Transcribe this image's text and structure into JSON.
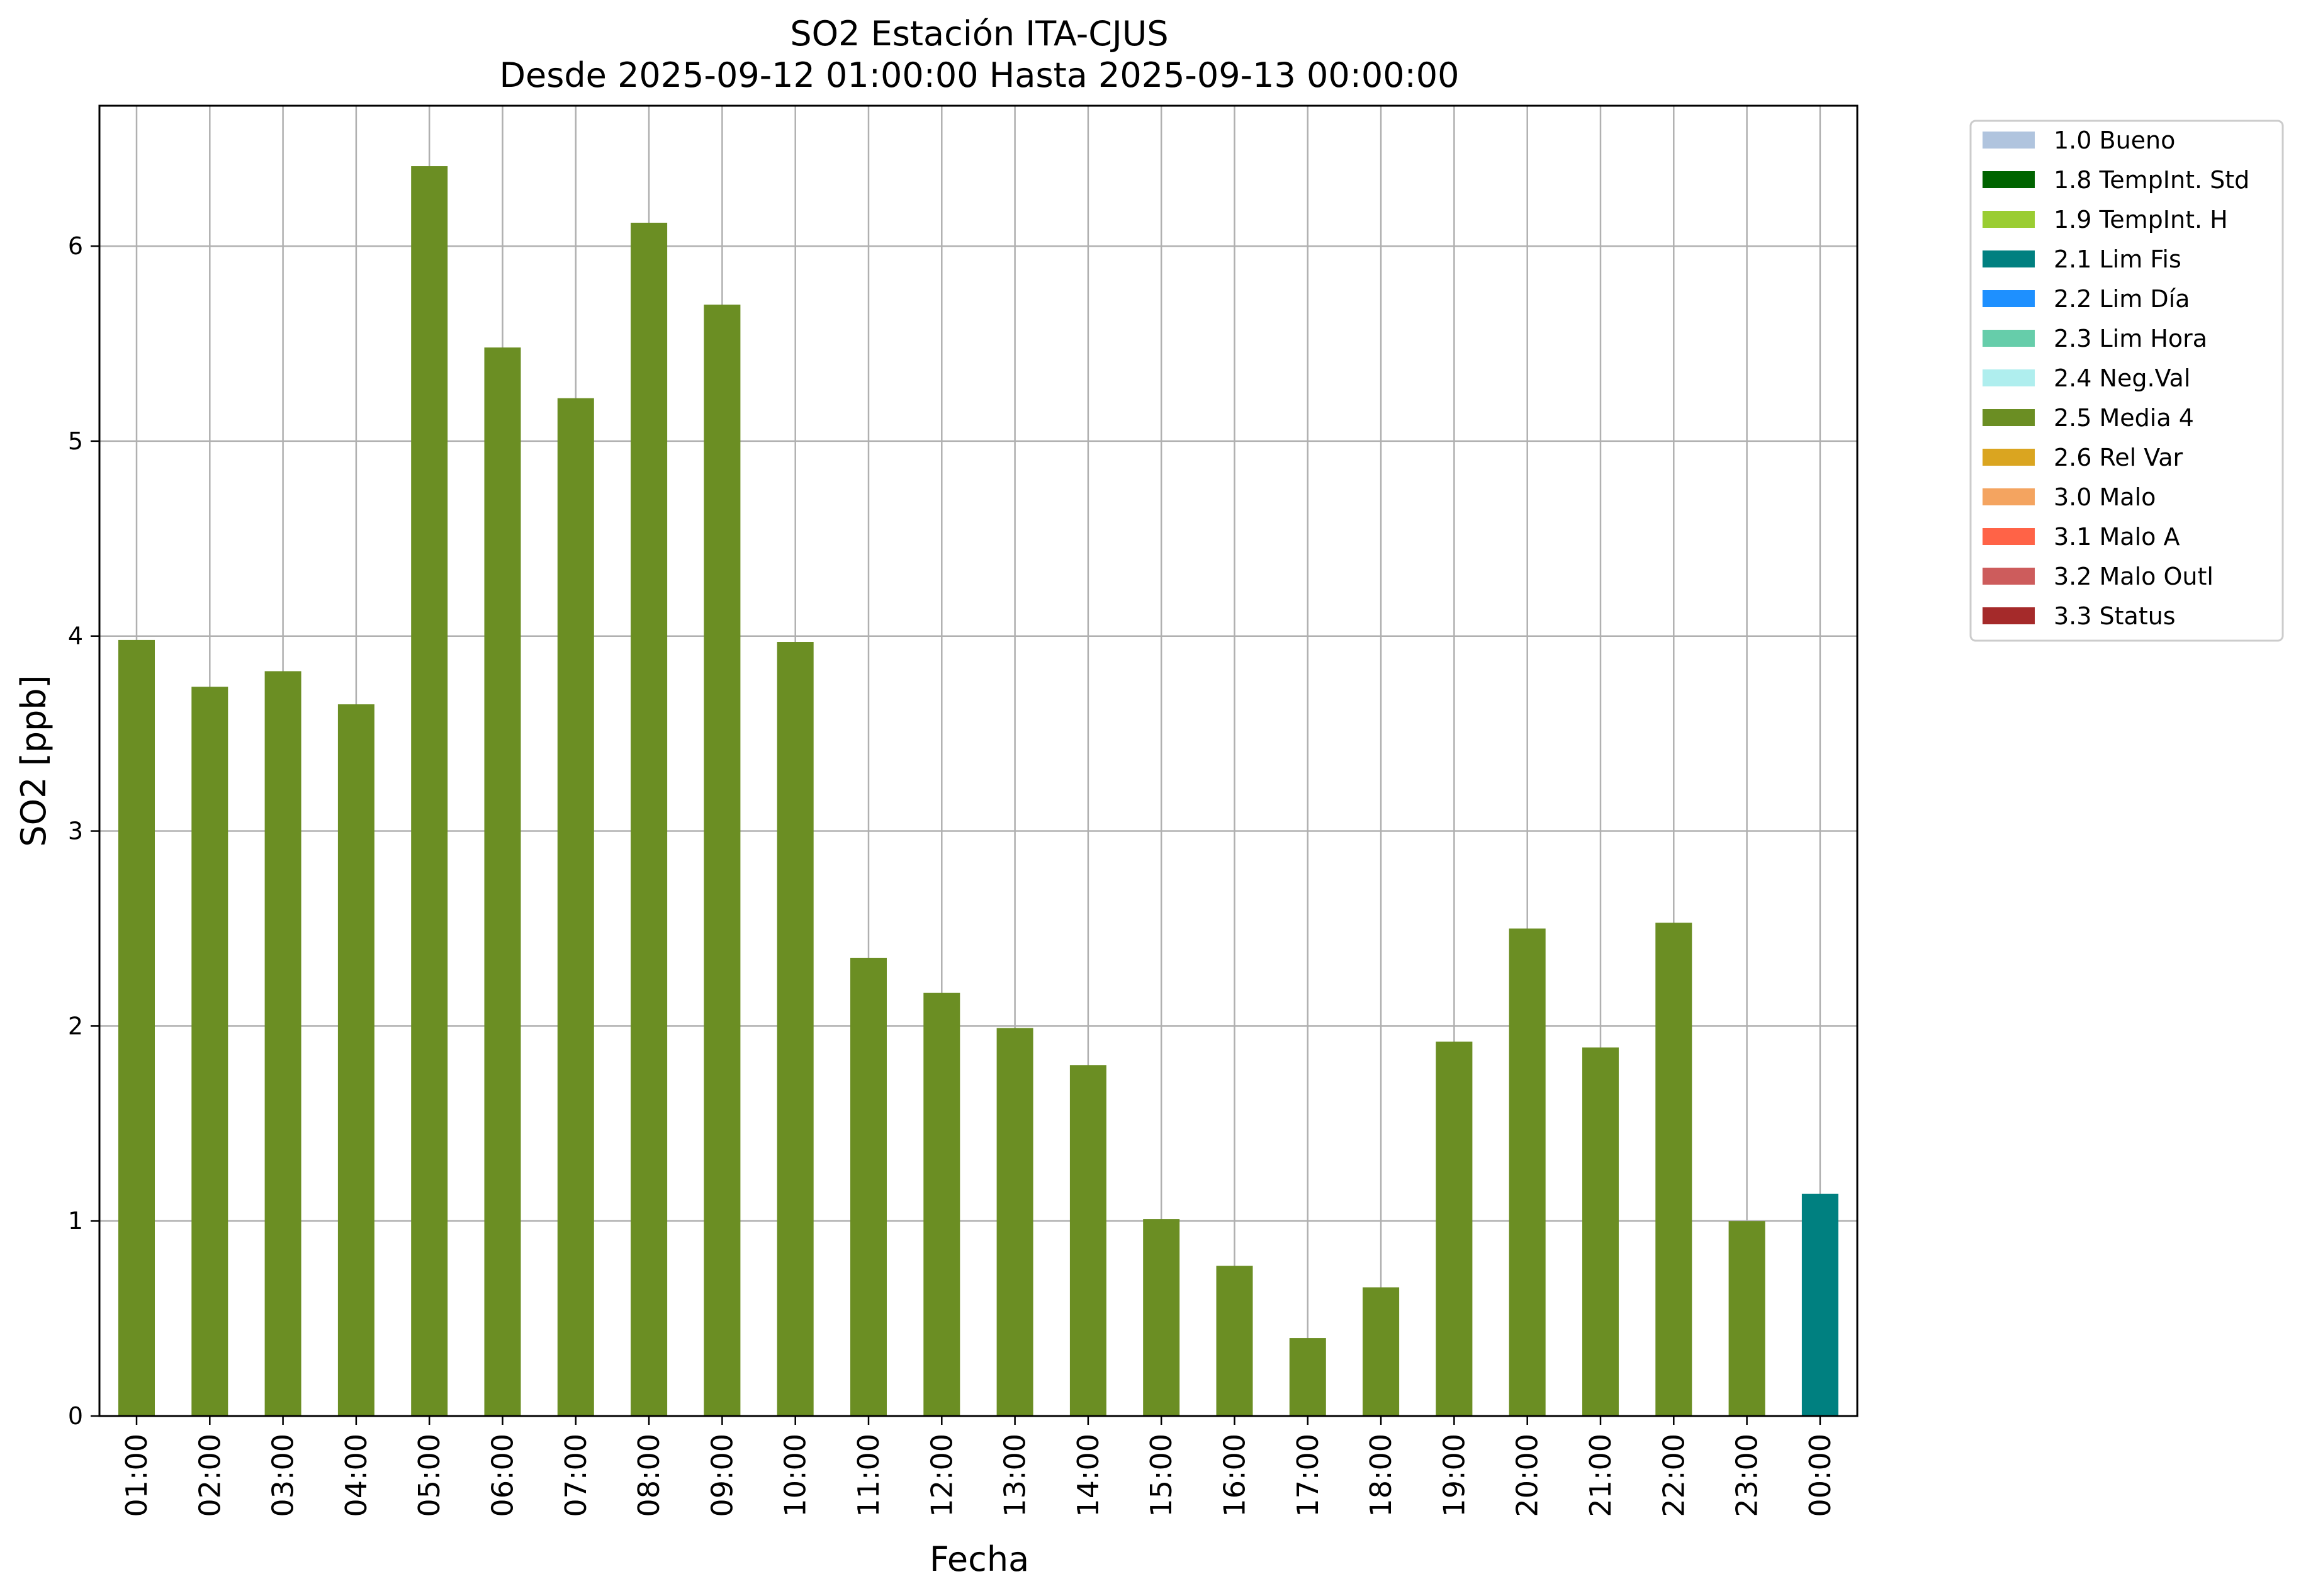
{
  "chart_data": {
    "type": "bar",
    "title": "SO2 Estación ITA-CJUS",
    "subtitle": "Desde 2025-09-12 01:00:00 Hasta 2025-09-13 00:00:00",
    "xlabel": "Fecha",
    "ylabel": "SO2 [ppb]",
    "ylim": [
      0,
      6.72
    ],
    "yticks": [
      "0",
      "1",
      "2",
      "3",
      "4",
      "5",
      "6"
    ],
    "grid": true,
    "legend_position": "outside-top-right",
    "categories": [
      "01:00",
      "02:00",
      "03:00",
      "04:00",
      "05:00",
      "06:00",
      "07:00",
      "08:00",
      "09:00",
      "10:00",
      "11:00",
      "12:00",
      "13:00",
      "14:00",
      "15:00",
      "16:00",
      "17:00",
      "18:00",
      "19:00",
      "20:00",
      "21:00",
      "22:00",
      "23:00",
      "00:00"
    ],
    "values": [
      3.98,
      3.74,
      3.82,
      3.65,
      6.41,
      5.48,
      5.22,
      6.12,
      5.7,
      3.97,
      2.35,
      2.17,
      1.99,
      1.8,
      1.01,
      0.77,
      0.4,
      0.66,
      1.92,
      2.5,
      1.89,
      2.53,
      1.0,
      1.14
    ],
    "flags": [
      "2.5 Media 4",
      "2.5 Media 4",
      "2.5 Media 4",
      "2.5 Media 4",
      "2.5 Media 4",
      "2.5 Media 4",
      "2.5 Media 4",
      "2.5 Media 4",
      "2.5 Media 4",
      "2.5 Media 4",
      "2.5 Media 4",
      "2.5 Media 4",
      "2.5 Media 4",
      "2.5 Media 4",
      "2.5 Media 4",
      "2.5 Media 4",
      "2.5 Media 4",
      "2.5 Media 4",
      "2.5 Media 4",
      "2.5 Media 4",
      "2.5 Media 4",
      "2.5 Media 4",
      "2.5 Media 4",
      "2.1 Lim Fis"
    ],
    "legend": [
      {
        "label": "1.0 Bueno",
        "color": "#b0c4de"
      },
      {
        "label": "1.8 TempInt. Std",
        "color": "#006400"
      },
      {
        "label": "1.9 TempInt. H",
        "color": "#9acd32"
      },
      {
        "label": "2.1 Lim Fis",
        "color": "#008080"
      },
      {
        "label": "2.2 Lim Día",
        "color": "#1e90ff"
      },
      {
        "label": "2.3 Lim Hora",
        "color": "#66cdaa"
      },
      {
        "label": "2.4 Neg.Val",
        "color": "#afeeee"
      },
      {
        "label": "2.5 Media 4",
        "color": "#6b8e23"
      },
      {
        "label": "2.6 Rel Var",
        "color": "#daa520"
      },
      {
        "label": "3.0 Malo",
        "color": "#f4a460"
      },
      {
        "label": "3.1 Malo A",
        "color": "#ff6347"
      },
      {
        "label": "3.2 Malo Outl",
        "color": "#cd5c5c"
      },
      {
        "label": "3.3 Status",
        "color": "#a52a2a"
      }
    ]
  }
}
